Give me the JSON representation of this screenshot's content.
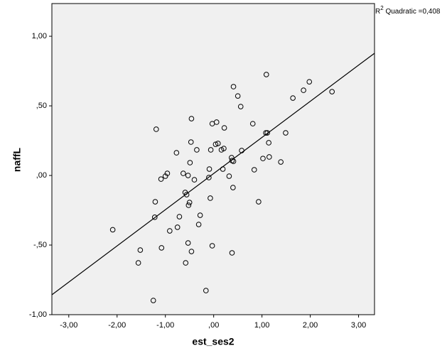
{
  "chart_data": {
    "type": "scatter",
    "x_label": "est_ses2",
    "y_label": "naffL",
    "annotation": {
      "base": "R",
      "sup": "2",
      "rest": " Quadratic =0,408"
    },
    "xlim": [
      -3.35,
      3.33
    ],
    "ylim": [
      -1.0,
      1.235
    ],
    "xticks": [
      {
        "value": -3,
        "label": "-3,00"
      },
      {
        "value": -2,
        "label": "-2,00"
      },
      {
        "value": -1,
        "label": "-1,00"
      },
      {
        "value": 0,
        "label": ",00"
      },
      {
        "value": 1,
        "label": "1,00"
      },
      {
        "value": 2,
        "label": "2,00"
      },
      {
        "value": 3,
        "label": "3,00"
      }
    ],
    "yticks": [
      {
        "value": -1,
        "label": "-1,00"
      },
      {
        "value": -0.5,
        "label": "-,50"
      },
      {
        "value": 0,
        "label": ",00"
      },
      {
        "value": 0.5,
        "label": ",50"
      },
      {
        "value": 1,
        "label": "1,00"
      }
    ],
    "color": "#000000",
    "x": [
      -2.09,
      -1.56,
      -1.52,
      -1.25,
      -1.22,
      -1.21,
      -1.19,
      -1.08,
      -1.09,
      -1.0,
      -0.96,
      -0.91,
      -0.77,
      -0.75,
      -0.71,
      -0.63,
      -0.59,
      -0.56,
      -0.58,
      -0.53,
      -0.53,
      -0.52,
      -0.5,
      -0.49,
      -0.47,
      -0.46,
      -0.46,
      -0.4,
      -0.35,
      -0.31,
      -0.28,
      -0.16,
      -0.1,
      -0.09,
      -0.07,
      -0.06,
      -0.03,
      -0.03,
      0.04,
      0.06,
      0.09,
      0.16,
      0.19,
      0.21,
      0.22,
      0.32,
      0.37,
      0.38,
      0.38,
      0.4,
      0.41,
      0.41,
      0.5,
      0.56,
      0.58,
      0.81,
      0.84,
      0.93,
      1.02,
      1.09,
      1.08,
      1.11,
      1.14,
      1.15,
      1.39,
      1.49,
      1.64,
      1.86,
      1.98,
      2.45
    ],
    "values": [
      -0.39,
      -0.628,
      -0.536,
      -0.898,
      -0.3,
      -0.189,
      0.332,
      -0.52,
      -0.026,
      -0.005,
      0.015,
      -0.398,
      0.163,
      -0.372,
      -0.296,
      0.015,
      -0.122,
      -0.138,
      -0.628,
      0.0,
      -0.485,
      -0.214,
      -0.194,
      0.092,
      0.24,
      -0.546,
      0.408,
      -0.031,
      0.184,
      -0.352,
      -0.286,
      -0.827,
      -0.015,
      0.046,
      -0.163,
      0.184,
      -0.505,
      0.372,
      0.224,
      0.383,
      0.23,
      0.184,
      0.046,
      0.194,
      0.342,
      -0.005,
      0.128,
      0.107,
      -0.556,
      -0.087,
      0.102,
      0.638,
      0.571,
      0.495,
      0.179,
      0.372,
      0.041,
      -0.189,
      0.122,
      0.725,
      0.306,
      0.306,
      0.235,
      0.133,
      0.097,
      0.306,
      0.556,
      0.612,
      0.673,
      0.602
    ],
    "fit_line": {
      "x": [
        -3.35,
        0,
        3.33
      ],
      "y": [
        -0.857,
        0.014,
        0.878
      ]
    }
  }
}
